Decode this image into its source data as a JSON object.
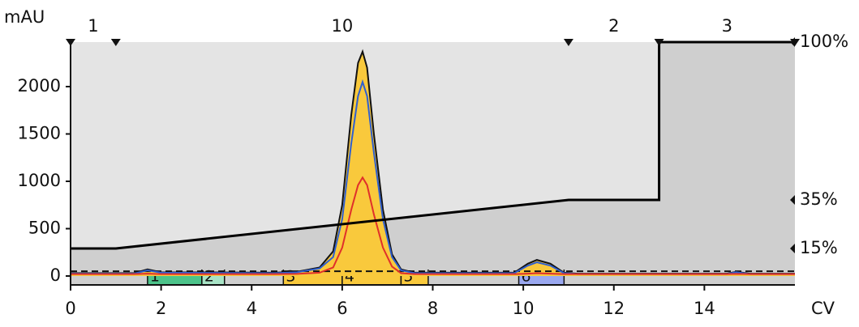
{
  "chart_data": {
    "type": "line",
    "y_label": "mAU",
    "x_label": "CV",
    "xlim": [
      0,
      16
    ],
    "xticks": [
      0,
      2,
      4,
      6,
      8,
      10,
      12,
      14
    ],
    "ylim": [
      -94,
      2470
    ],
    "yticks": [
      0,
      500,
      1000,
      1500,
      2000
    ],
    "y2lim": [
      0,
      100
    ],
    "y2ticks": [
      {
        "value": 100,
        "label": "100%"
      },
      {
        "value": 35,
        "label": "35%"
      },
      {
        "value": 15,
        "label": "15%"
      }
    ],
    "x": [
      0,
      1.4,
      1.7,
      2,
      4.5,
      5,
      5.5,
      5.8,
      6,
      6.2,
      6.35,
      6.45,
      6.55,
      6.7,
      6.9,
      7.1,
      7.3,
      7.6,
      9.8,
      10.1,
      10.3,
      10.6,
      10.9,
      11.2,
      14.5,
      14.7,
      15,
      16
    ],
    "series": [
      {
        "color": "#111111",
        "fill": "#f9c93c",
        "values": [
          30,
          30,
          70,
          40,
          35,
          45,
          90,
          260,
          750,
          1700,
          2250,
          2370,
          2200,
          1500,
          700,
          230,
          70,
          35,
          35,
          130,
          170,
          130,
          35,
          25,
          25,
          45,
          25,
          25
        ]
      },
      {
        "color": "#2f5fd0",
        "values": [
          25,
          25,
          60,
          35,
          30,
          40,
          80,
          200,
          600,
          1400,
          1900,
          2050,
          1900,
          1300,
          600,
          200,
          60,
          30,
          30,
          110,
          145,
          110,
          30,
          20,
          20,
          40,
          20,
          20
        ]
      },
      {
        "color": "#e0302a",
        "values": [
          20,
          20,
          25,
          20,
          20,
          22,
          35,
          90,
          300,
          700,
          960,
          1040,
          960,
          650,
          300,
          100,
          30,
          20,
          20,
          25,
          30,
          25,
          20,
          20,
          20,
          22,
          20,
          20
        ]
      }
    ],
    "threshold": 50,
    "gradient": {
      "axis": "y2",
      "color": "#000000",
      "x": [
        0,
        1,
        11,
        13,
        13,
        16
      ],
      "values": [
        15,
        15,
        35,
        35,
        100,
        100
      ]
    },
    "phases": [
      {
        "label": "1",
        "start": 0,
        "end": 1
      },
      {
        "label": "10",
        "start": 1,
        "end": 11
      },
      {
        "label": "2",
        "start": 11,
        "end": 13
      },
      {
        "label": "3",
        "start": 13,
        "end": 16
      }
    ],
    "fractions": [
      {
        "label": "1",
        "start": 1.7,
        "end": 2.9,
        "color": "#4cc38a"
      },
      {
        "label": "2",
        "start": 2.9,
        "end": 3.4,
        "color": "#a8e3c6"
      },
      {
        "label": "3",
        "start": 4.7,
        "end": 6,
        "color": "#f9c93c"
      },
      {
        "label": "4",
        "start": 6,
        "end": 7.3,
        "color": "#f9c93c"
      },
      {
        "label": "5",
        "start": 7.3,
        "end": 7.9,
        "color": "#f9c93c"
      },
      {
        "label": "6",
        "start": 9.9,
        "end": 10.9,
        "color": "#9aa8f0"
      }
    ]
  }
}
